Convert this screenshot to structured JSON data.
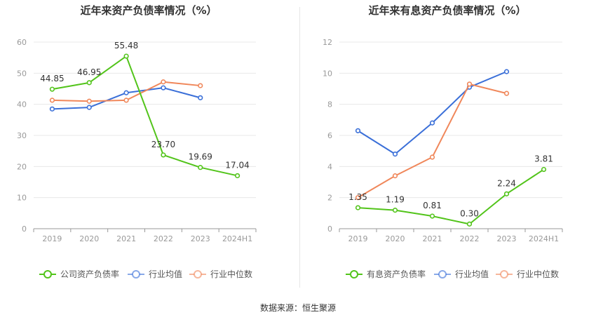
{
  "source": "数据来源：恒生聚源",
  "colors": {
    "main": "#52c41a",
    "avg": "#3a6fd8",
    "median": "#f0875a",
    "grid": "#e8e8e8",
    "axis": "#999999",
    "text": "#333333"
  },
  "chart_data": [
    {
      "type": "line",
      "title": "近年来资产负债率情况（%）",
      "categories": [
        "2019",
        "2020",
        "2021",
        "2022",
        "2023",
        "2024H1"
      ],
      "ylim": [
        0,
        60
      ],
      "yticks": [
        0,
        10,
        20,
        30,
        40,
        50,
        60
      ],
      "grid": true,
      "legend_position": "bottom",
      "series": [
        {
          "name": "公司资产负债率",
          "color": "#52c41a",
          "labels": true,
          "values": [
            44.85,
            46.95,
            55.48,
            23.7,
            19.69,
            17.04
          ],
          "label_text": [
            "44.85",
            "46.95",
            "55.48",
            "23.70",
            "19.69",
            "17.04"
          ]
        },
        {
          "name": "行业均值",
          "color": "#3a6fd8",
          "labels": false,
          "values": [
            38.5,
            39.0,
            43.7,
            45.3,
            42.1,
            null
          ]
        },
        {
          "name": "行业中位数",
          "color": "#f0875a",
          "labels": false,
          "values": [
            41.3,
            41.0,
            41.3,
            47.2,
            46.0,
            null
          ]
        }
      ]
    },
    {
      "type": "line",
      "title": "近年来有息资产负债率情况（%）",
      "categories": [
        "2019",
        "2020",
        "2021",
        "2022",
        "2023",
        "2024H1"
      ],
      "ylim": [
        0,
        12
      ],
      "yticks": [
        0,
        2,
        4,
        6,
        8,
        10,
        12
      ],
      "grid": true,
      "legend_position": "bottom",
      "series": [
        {
          "name": "有息资产负债率",
          "color": "#52c41a",
          "labels": true,
          "values": [
            1.35,
            1.19,
            0.81,
            0.3,
            2.24,
            3.81
          ],
          "label_text": [
            "1.35",
            "1.19",
            "0.81",
            "0.30",
            "2.24",
            "3.81"
          ]
        },
        {
          "name": "行业均值",
          "color": "#3a6fd8",
          "labels": false,
          "values": [
            6.3,
            4.8,
            6.8,
            9.1,
            10.1,
            null
          ]
        },
        {
          "name": "行业中位数",
          "color": "#f0875a",
          "labels": false,
          "values": [
            2.0,
            3.4,
            4.6,
            9.3,
            8.7,
            null
          ]
        }
      ]
    }
  ]
}
